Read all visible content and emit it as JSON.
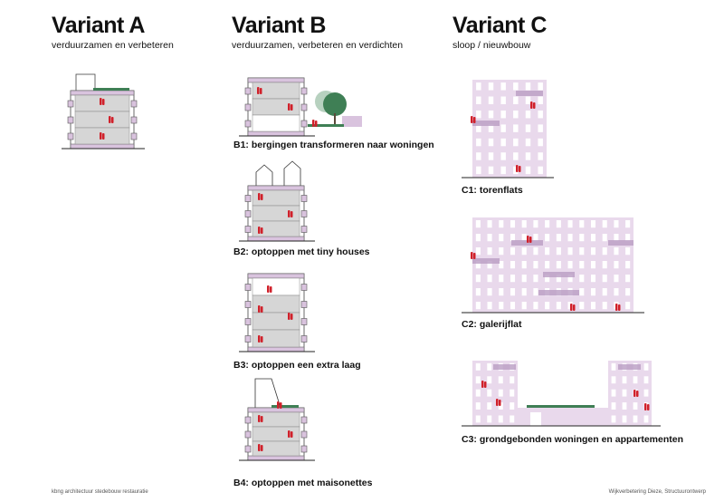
{
  "variants": [
    {
      "title": "Variant A",
      "subtitle": "verduurzamen en verbeteren"
    },
    {
      "title": "Variant B",
      "subtitle": "verduurzamen, verbeteren en verdichten"
    },
    {
      "title": "Variant C",
      "subtitle": "sloop / nieuwbouw"
    }
  ],
  "captions": {
    "b1": "B1: bergingen transformeren naar woningen",
    "b2": "B2: optoppen met tiny houses",
    "b3": "B3: optoppen een extra laag",
    "b4": "B4: optoppen met maisonettes",
    "c1": "C1: torenflats",
    "c2": "C2: galerijflat",
    "c3": "C3: grondgebonden woningen en appartementen"
  },
  "footer": {
    "left": "kbng architectuur stedebouw restauratie",
    "right": "Wijkverbetering Dieze, Structuurontwerp"
  },
  "colors": {
    "lilac": "#d9c3de",
    "lilac_dark": "#b99cc3",
    "grey": "#d6d6d6",
    "figure": "#d0202a",
    "green": "#3f7f55"
  }
}
